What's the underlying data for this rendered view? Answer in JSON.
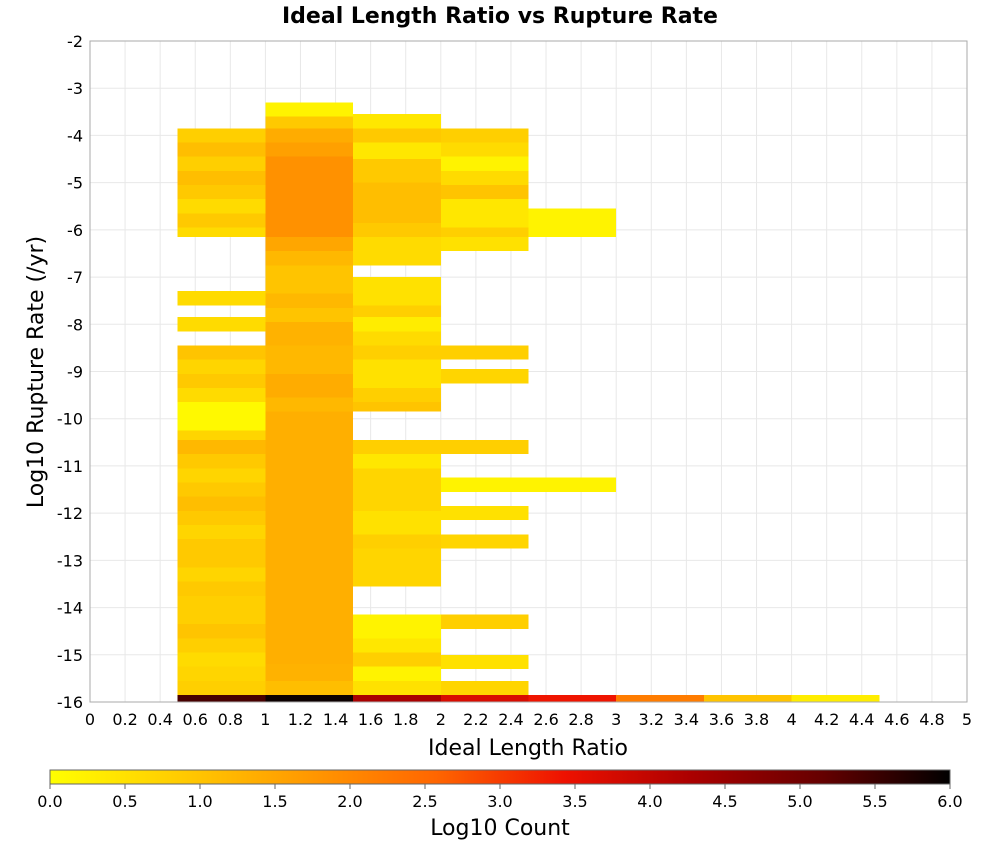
{
  "chart_data": {
    "type": "heatmap",
    "title": "Ideal Length Ratio vs Rupture Rate",
    "xlabel": "Ideal Length Ratio",
    "ylabel": "Log10 Rupture Rate (/yr)",
    "xlim": [
      0,
      5
    ],
    "ylim": [
      -16,
      -2
    ],
    "xticks": [
      0,
      0.2,
      0.4,
      0.6,
      0.8,
      1,
      1.2,
      1.4,
      1.6,
      1.8,
      2,
      2.2,
      2.4,
      2.6,
      2.8,
      3,
      3.2,
      3.4,
      3.6,
      3.8,
      4,
      4.2,
      4.4,
      4.6,
      4.8,
      5
    ],
    "yticks": [
      -2,
      -3,
      -4,
      -5,
      -6,
      -7,
      -8,
      -9,
      -10,
      -11,
      -12,
      -13,
      -14,
      -15,
      -16
    ],
    "grid": true,
    "bin_width_x": 0.5,
    "bin_height_y": 0.1,
    "colorbar": {
      "label": "Log10 Count",
      "min": 0.0,
      "max": 6.0,
      "ticks": [
        "0.0",
        "0.5",
        "1.0",
        "1.5",
        "2.0",
        "2.5",
        "3.0",
        "3.5",
        "4.0",
        "4.5",
        "5.0",
        "5.5",
        "6.0"
      ],
      "colormap": [
        "#ffff00",
        "#ffcc00",
        "#ff9900",
        "#ff6600",
        "#ee1100",
        "#aa0000",
        "#660000",
        "#000000"
      ]
    },
    "columns": [
      {
        "x0": 0.5,
        "x1": 1.0,
        "runs": [
          [
            -4.15,
            -3.85,
            0.8
          ],
          [
            -4.45,
            -4.15,
            1.1
          ],
          [
            -4.75,
            -4.45,
            0.8
          ],
          [
            -5.05,
            -4.75,
            1.1
          ],
          [
            -5.35,
            -5.05,
            0.9
          ],
          [
            -5.65,
            -5.35,
            0.6
          ],
          [
            -5.95,
            -5.65,
            0.9
          ],
          [
            -6.15,
            -5.95,
            0.6
          ],
          [
            -7.6,
            -7.3,
            0.6
          ],
          [
            -8.15,
            -7.85,
            0.6
          ],
          [
            -8.75,
            -8.45,
            1.0
          ],
          [
            -9.05,
            -8.75,
            0.7
          ],
          [
            -9.35,
            -9.05,
            0.9
          ],
          [
            -9.65,
            -9.35,
            0.6
          ],
          [
            -10.25,
            -9.65,
            0.1
          ],
          [
            -10.45,
            -10.25,
            0.7
          ],
          [
            -10.75,
            -10.45,
            1.2
          ],
          [
            -11.05,
            -10.75,
            0.9
          ],
          [
            -11.35,
            -11.05,
            0.7
          ],
          [
            -11.65,
            -11.35,
            0.9
          ],
          [
            -11.95,
            -11.65,
            1.1
          ],
          [
            -12.25,
            -11.95,
            0.9
          ],
          [
            -12.55,
            -12.25,
            0.7
          ],
          [
            -12.85,
            -12.55,
            0.9
          ],
          [
            -13.15,
            -12.85,
            0.9
          ],
          [
            -13.45,
            -13.15,
            0.7
          ],
          [
            -13.75,
            -13.45,
            0.9
          ],
          [
            -14.05,
            -13.75,
            0.8
          ],
          [
            -14.35,
            -14.05,
            0.8
          ],
          [
            -14.65,
            -14.35,
            1.0
          ],
          [
            -14.95,
            -14.65,
            0.8
          ],
          [
            -15.25,
            -14.95,
            0.6
          ],
          [
            -15.55,
            -15.25,
            0.7
          ],
          [
            -15.85,
            -15.55,
            0.8
          ],
          [
            -16.0,
            -15.85,
            5.4
          ]
        ]
      },
      {
        "x0": 1.0,
        "x1": 1.5,
        "runs": [
          [
            -3.6,
            -3.3,
            0.2
          ],
          [
            -3.85,
            -3.6,
            0.9
          ],
          [
            -4.15,
            -3.85,
            1.4
          ],
          [
            -4.45,
            -4.15,
            1.6
          ],
          [
            -6.15,
            -4.45,
            1.85
          ],
          [
            -6.45,
            -6.15,
            1.5
          ],
          [
            -6.75,
            -6.45,
            1.2
          ],
          [
            -7.35,
            -6.75,
            1.0
          ],
          [
            -7.65,
            -7.35,
            1.2
          ],
          [
            -7.95,
            -7.65,
            1.0
          ],
          [
            -8.45,
            -7.95,
            1.3
          ],
          [
            -9.05,
            -8.45,
            1.2
          ],
          [
            -9.55,
            -9.05,
            1.4
          ],
          [
            -9.85,
            -9.55,
            1.2
          ],
          [
            -15.2,
            -9.85,
            1.35
          ],
          [
            -15.55,
            -15.2,
            1.3
          ],
          [
            -15.85,
            -15.55,
            1.1
          ],
          [
            -16.0,
            -15.85,
            5.9
          ]
        ]
      },
      {
        "x0": 1.5,
        "x1": 2.0,
        "runs": [
          [
            -3.85,
            -3.55,
            0.4
          ],
          [
            -4.15,
            -3.85,
            0.9
          ],
          [
            -4.5,
            -4.15,
            0.4
          ],
          [
            -5.0,
            -4.5,
            0.9
          ],
          [
            -5.85,
            -5.0,
            1.1
          ],
          [
            -6.15,
            -5.85,
            0.9
          ],
          [
            -6.75,
            -6.15,
            0.6
          ],
          [
            -7.6,
            -7.0,
            0.5
          ],
          [
            -7.85,
            -7.6,
            0.8
          ],
          [
            -8.15,
            -7.85,
            0.3
          ],
          [
            -8.45,
            -8.15,
            0.6
          ],
          [
            -8.75,
            -8.45,
            0.8
          ],
          [
            -9.35,
            -8.75,
            0.5
          ],
          [
            -9.65,
            -9.35,
            0.8
          ],
          [
            -9.85,
            -9.65,
            1.0
          ],
          [
            -10.75,
            -10.45,
            0.8
          ],
          [
            -11.05,
            -10.75,
            0.4
          ],
          [
            -11.95,
            -11.05,
            0.7
          ],
          [
            -12.45,
            -11.95,
            0.5
          ],
          [
            -12.75,
            -12.45,
            0.8
          ],
          [
            -13.55,
            -12.75,
            0.7
          ],
          [
            -14.65,
            -14.15,
            0.2
          ],
          [
            -14.95,
            -14.65,
            0.4
          ],
          [
            -15.25,
            -14.95,
            0.8
          ],
          [
            -15.55,
            -15.25,
            0.2
          ],
          [
            -15.85,
            -15.55,
            0.5
          ],
          [
            -16.0,
            -15.85,
            4.3
          ]
        ]
      },
      {
        "x0": 2.0,
        "x1": 2.5,
        "runs": [
          [
            -4.15,
            -3.85,
            0.8
          ],
          [
            -4.45,
            -4.15,
            0.6
          ],
          [
            -4.75,
            -4.45,
            0.2
          ],
          [
            -5.05,
            -4.75,
            0.6
          ],
          [
            -5.35,
            -5.05,
            1.0
          ],
          [
            -5.95,
            -5.35,
            0.4
          ],
          [
            -6.15,
            -5.95,
            0.8
          ],
          [
            -6.45,
            -6.15,
            0.5
          ],
          [
            -8.75,
            -8.45,
            0.8
          ],
          [
            -9.25,
            -8.95,
            0.7
          ],
          [
            -10.75,
            -10.45,
            0.8
          ],
          [
            -11.55,
            -11.25,
            0.2
          ],
          [
            -12.15,
            -11.85,
            0.5
          ],
          [
            -12.75,
            -12.45,
            0.7
          ],
          [
            -14.45,
            -14.15,
            0.8
          ],
          [
            -15.3,
            -15.0,
            0.5
          ],
          [
            -15.85,
            -15.55,
            0.7
          ],
          [
            -16.0,
            -15.85,
            3.7
          ]
        ]
      },
      {
        "x0": 2.5,
        "x1": 3.0,
        "runs": [
          [
            -6.15,
            -5.55,
            0.2
          ],
          [
            -11.55,
            -11.25,
            0.2
          ],
          [
            -16.0,
            -15.85,
            3.4
          ]
        ]
      },
      {
        "x0": 3.0,
        "x1": 3.5,
        "runs": [
          [
            -16.0,
            -15.85,
            2.2
          ]
        ]
      },
      {
        "x0": 3.5,
        "x1": 4.0,
        "runs": [
          [
            -16.0,
            -15.85,
            1.0
          ]
        ]
      },
      {
        "x0": 4.0,
        "x1": 4.5,
        "runs": [
          [
            -16.0,
            -15.85,
            0.3
          ]
        ]
      }
    ]
  }
}
